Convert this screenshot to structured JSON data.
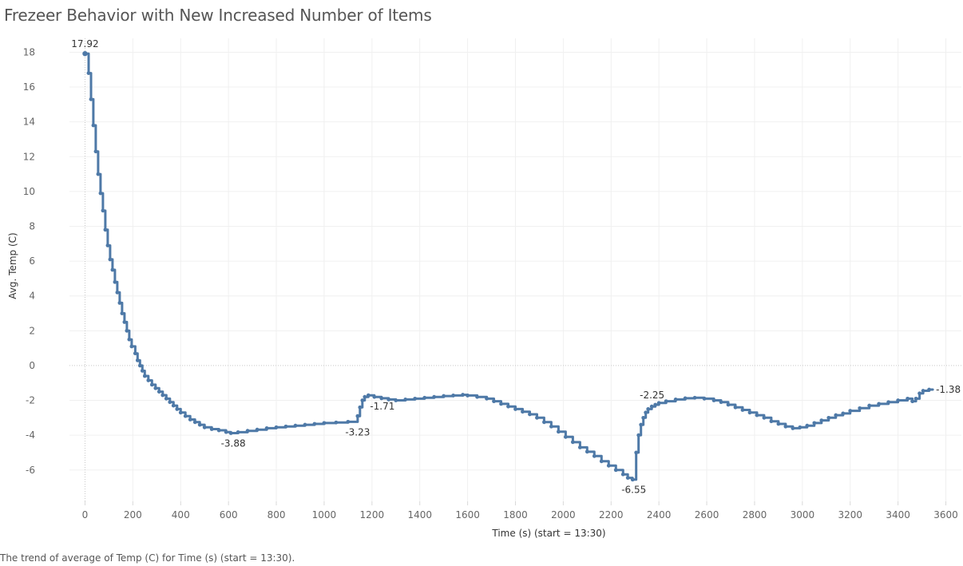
{
  "title": "Frezeer Behavior with New Increased Number of Items",
  "caption": "The trend of average of Temp (C) for Time (s) (start = 13:30).",
  "chart_data": {
    "type": "line",
    "line_style": "step",
    "title": "Frezeer Behavior with New Increased Number of Items",
    "xlabel": "Time (s) (start = 13:30)",
    "ylabel": "Avg. Temp (C)",
    "xlim": [
      -65,
      3665
    ],
    "ylim": [
      -7.8,
      18.8
    ],
    "x_ticks": [
      0,
      200,
      400,
      600,
      800,
      1000,
      1200,
      1400,
      1600,
      1800,
      2000,
      2200,
      2400,
      2600,
      2800,
      3000,
      3200,
      3400,
      3600
    ],
    "y_ticks": [
      -6,
      -4,
      -2,
      0,
      2,
      4,
      6,
      8,
      10,
      12,
      14,
      16,
      18
    ],
    "grid": true,
    "line_color": "#4e79a7",
    "series": [
      {
        "points": [
          [
            0,
            17.92
          ],
          [
            15,
            17.92
          ],
          [
            15,
            16.8
          ],
          [
            25,
            16.8
          ],
          [
            25,
            15.3
          ],
          [
            35,
            15.3
          ],
          [
            35,
            13.8
          ],
          [
            45,
            13.8
          ],
          [
            45,
            12.3
          ],
          [
            55,
            12.3
          ],
          [
            55,
            11.0
          ],
          [
            65,
            11.0
          ],
          [
            65,
            9.9
          ],
          [
            75,
            9.9
          ],
          [
            75,
            8.9
          ],
          [
            85,
            8.9
          ],
          [
            85,
            7.8
          ],
          [
            95,
            7.8
          ],
          [
            95,
            6.9
          ],
          [
            105,
            6.9
          ],
          [
            105,
            6.1
          ],
          [
            115,
            6.1
          ],
          [
            115,
            5.5
          ],
          [
            125,
            5.5
          ],
          [
            125,
            4.8
          ],
          [
            135,
            4.8
          ],
          [
            135,
            4.2
          ],
          [
            145,
            4.2
          ],
          [
            145,
            3.6
          ],
          [
            155,
            3.6
          ],
          [
            155,
            3.0
          ],
          [
            165,
            3.0
          ],
          [
            165,
            2.5
          ],
          [
            175,
            2.5
          ],
          [
            175,
            2.0
          ],
          [
            185,
            2.0
          ],
          [
            185,
            1.5
          ],
          [
            195,
            1.5
          ],
          [
            195,
            1.1
          ],
          [
            210,
            1.1
          ],
          [
            210,
            0.7
          ],
          [
            220,
            0.7
          ],
          [
            220,
            0.3
          ],
          [
            230,
            0.3
          ],
          [
            230,
            0.0
          ],
          [
            240,
            0.0
          ],
          [
            240,
            -0.3
          ],
          [
            250,
            -0.3
          ],
          [
            250,
            -0.6
          ],
          [
            265,
            -0.6
          ],
          [
            265,
            -0.85
          ],
          [
            280,
            -0.85
          ],
          [
            280,
            -1.1
          ],
          [
            295,
            -1.1
          ],
          [
            295,
            -1.3
          ],
          [
            310,
            -1.3
          ],
          [
            310,
            -1.5
          ],
          [
            325,
            -1.5
          ],
          [
            325,
            -1.7
          ],
          [
            340,
            -1.7
          ],
          [
            340,
            -1.9
          ],
          [
            355,
            -1.9
          ],
          [
            355,
            -2.1
          ],
          [
            370,
            -2.1
          ],
          [
            370,
            -2.3
          ],
          [
            385,
            -2.3
          ],
          [
            385,
            -2.5
          ],
          [
            400,
            -2.5
          ],
          [
            400,
            -2.7
          ],
          [
            420,
            -2.7
          ],
          [
            420,
            -2.9
          ],
          [
            440,
            -2.9
          ],
          [
            440,
            -3.1
          ],
          [
            460,
            -3.1
          ],
          [
            460,
            -3.25
          ],
          [
            480,
            -3.25
          ],
          [
            480,
            -3.4
          ],
          [
            500,
            -3.4
          ],
          [
            500,
            -3.55
          ],
          [
            530,
            -3.55
          ],
          [
            530,
            -3.65
          ],
          [
            560,
            -3.65
          ],
          [
            560,
            -3.72
          ],
          [
            590,
            -3.72
          ],
          [
            590,
            -3.82
          ],
          [
            610,
            -3.82
          ],
          [
            610,
            -3.88
          ],
          [
            640,
            -3.88
          ],
          [
            640,
            -3.83
          ],
          [
            680,
            -3.83
          ],
          [
            680,
            -3.75
          ],
          [
            720,
            -3.75
          ],
          [
            720,
            -3.68
          ],
          [
            760,
            -3.68
          ],
          [
            760,
            -3.6
          ],
          [
            800,
            -3.6
          ],
          [
            800,
            -3.55
          ],
          [
            840,
            -3.55
          ],
          [
            840,
            -3.5
          ],
          [
            880,
            -3.5
          ],
          [
            880,
            -3.45
          ],
          [
            920,
            -3.45
          ],
          [
            920,
            -3.4
          ],
          [
            960,
            -3.4
          ],
          [
            960,
            -3.35
          ],
          [
            1000,
            -3.35
          ],
          [
            1000,
            -3.3
          ],
          [
            1050,
            -3.3
          ],
          [
            1050,
            -3.27
          ],
          [
            1100,
            -3.27
          ],
          [
            1100,
            -3.23
          ],
          [
            1140,
            -3.23
          ],
          [
            1140,
            -2.9
          ],
          [
            1150,
            -2.9
          ],
          [
            1150,
            -2.4
          ],
          [
            1160,
            -2.4
          ],
          [
            1160,
            -2.0
          ],
          [
            1170,
            -2.0
          ],
          [
            1170,
            -1.8
          ],
          [
            1185,
            -1.8
          ],
          [
            1185,
            -1.71
          ],
          [
            1210,
            -1.71
          ],
          [
            1210,
            -1.8
          ],
          [
            1240,
            -1.8
          ],
          [
            1240,
            -1.88
          ],
          [
            1270,
            -1.88
          ],
          [
            1270,
            -1.95
          ],
          [
            1300,
            -1.95
          ],
          [
            1300,
            -2.0
          ],
          [
            1340,
            -2.0
          ],
          [
            1340,
            -1.95
          ],
          [
            1380,
            -1.95
          ],
          [
            1380,
            -1.9
          ],
          [
            1420,
            -1.9
          ],
          [
            1420,
            -1.85
          ],
          [
            1460,
            -1.85
          ],
          [
            1460,
            -1.8
          ],
          [
            1500,
            -1.8
          ],
          [
            1500,
            -1.75
          ],
          [
            1540,
            -1.75
          ],
          [
            1540,
            -1.72
          ],
          [
            1580,
            -1.72
          ],
          [
            1580,
            -1.68
          ],
          [
            1600,
            -1.68
          ],
          [
            1600,
            -1.72
          ],
          [
            1640,
            -1.72
          ],
          [
            1640,
            -1.8
          ],
          [
            1680,
            -1.8
          ],
          [
            1680,
            -1.9
          ],
          [
            1710,
            -1.9
          ],
          [
            1710,
            -2.05
          ],
          [
            1740,
            -2.05
          ],
          [
            1740,
            -2.2
          ],
          [
            1770,
            -2.2
          ],
          [
            1770,
            -2.35
          ],
          [
            1800,
            -2.35
          ],
          [
            1800,
            -2.5
          ],
          [
            1830,
            -2.5
          ],
          [
            1830,
            -2.65
          ],
          [
            1860,
            -2.65
          ],
          [
            1860,
            -2.8
          ],
          [
            1890,
            -2.8
          ],
          [
            1890,
            -3.0
          ],
          [
            1920,
            -3.0
          ],
          [
            1920,
            -3.25
          ],
          [
            1950,
            -3.25
          ],
          [
            1950,
            -3.5
          ],
          [
            1980,
            -3.5
          ],
          [
            1980,
            -3.8
          ],
          [
            2010,
            -3.8
          ],
          [
            2010,
            -4.1
          ],
          [
            2040,
            -4.1
          ],
          [
            2040,
            -4.4
          ],
          [
            2070,
            -4.4
          ],
          [
            2070,
            -4.7
          ],
          [
            2100,
            -4.7
          ],
          [
            2100,
            -4.95
          ],
          [
            2130,
            -4.95
          ],
          [
            2130,
            -5.2
          ],
          [
            2160,
            -5.2
          ],
          [
            2160,
            -5.5
          ],
          [
            2190,
            -5.5
          ],
          [
            2190,
            -5.75
          ],
          [
            2220,
            -5.75
          ],
          [
            2220,
            -6.0
          ],
          [
            2250,
            -6.0
          ],
          [
            2250,
            -6.25
          ],
          [
            2270,
            -6.25
          ],
          [
            2270,
            -6.45
          ],
          [
            2290,
            -6.45
          ],
          [
            2290,
            -6.55
          ],
          [
            2305,
            -6.55
          ],
          [
            2305,
            -5.0
          ],
          [
            2315,
            -5.0
          ],
          [
            2315,
            -4.0
          ],
          [
            2325,
            -4.0
          ],
          [
            2325,
            -3.4
          ],
          [
            2335,
            -3.4
          ],
          [
            2335,
            -3.0
          ],
          [
            2345,
            -3.0
          ],
          [
            2345,
            -2.7
          ],
          [
            2355,
            -2.7
          ],
          [
            2355,
            -2.5
          ],
          [
            2370,
            -2.5
          ],
          [
            2370,
            -2.35
          ],
          [
            2385,
            -2.35
          ],
          [
            2385,
            -2.25
          ],
          [
            2400,
            -2.25
          ],
          [
            2400,
            -2.15
          ],
          [
            2430,
            -2.15
          ],
          [
            2430,
            -2.05
          ],
          [
            2470,
            -2.05
          ],
          [
            2470,
            -1.95
          ],
          [
            2510,
            -1.95
          ],
          [
            2510,
            -1.88
          ],
          [
            2550,
            -1.88
          ],
          [
            2550,
            -1.85
          ],
          [
            2590,
            -1.85
          ],
          [
            2590,
            -1.9
          ],
          [
            2630,
            -1.9
          ],
          [
            2630,
            -2.0
          ],
          [
            2660,
            -2.0
          ],
          [
            2660,
            -2.1
          ],
          [
            2690,
            -2.1
          ],
          [
            2690,
            -2.25
          ],
          [
            2720,
            -2.25
          ],
          [
            2720,
            -2.4
          ],
          [
            2750,
            -2.4
          ],
          [
            2750,
            -2.55
          ],
          [
            2780,
            -2.55
          ],
          [
            2780,
            -2.7
          ],
          [
            2810,
            -2.7
          ],
          [
            2810,
            -2.85
          ],
          [
            2840,
            -2.85
          ],
          [
            2840,
            -3.0
          ],
          [
            2870,
            -3.0
          ],
          [
            2870,
            -3.2
          ],
          [
            2900,
            -3.2
          ],
          [
            2900,
            -3.35
          ],
          [
            2930,
            -3.35
          ],
          [
            2930,
            -3.5
          ],
          [
            2960,
            -3.5
          ],
          [
            2960,
            -3.6
          ],
          [
            2990,
            -3.6
          ],
          [
            2990,
            -3.55
          ],
          [
            3020,
            -3.55
          ],
          [
            3020,
            -3.45
          ],
          [
            3050,
            -3.45
          ],
          [
            3050,
            -3.3
          ],
          [
            3080,
            -3.3
          ],
          [
            3080,
            -3.15
          ],
          [
            3110,
            -3.15
          ],
          [
            3110,
            -3.0
          ],
          [
            3140,
            -3.0
          ],
          [
            3140,
            -2.85
          ],
          [
            3170,
            -2.85
          ],
          [
            3170,
            -2.75
          ],
          [
            3200,
            -2.75
          ],
          [
            3200,
            -2.6
          ],
          [
            3240,
            -2.6
          ],
          [
            3240,
            -2.45
          ],
          [
            3280,
            -2.45
          ],
          [
            3280,
            -2.3
          ],
          [
            3320,
            -2.3
          ],
          [
            3320,
            -2.2
          ],
          [
            3360,
            -2.2
          ],
          [
            3360,
            -2.1
          ],
          [
            3400,
            -2.1
          ],
          [
            3400,
            -2.0
          ],
          [
            3440,
            -2.0
          ],
          [
            3440,
            -1.9
          ],
          [
            3460,
            -1.9
          ],
          [
            3460,
            -2.05
          ],
          [
            3475,
            -2.05
          ],
          [
            3475,
            -1.9
          ],
          [
            3490,
            -1.9
          ],
          [
            3490,
            -1.6
          ],
          [
            3505,
            -1.6
          ],
          [
            3505,
            -1.45
          ],
          [
            3530,
            -1.45
          ],
          [
            3530,
            -1.38
          ],
          [
            3545,
            -1.38
          ]
        ]
      }
    ],
    "annotations": [
      {
        "text": "17.92",
        "x": 0,
        "y": 17.92,
        "anchor": "above"
      },
      {
        "text": "-3.88",
        "x": 620,
        "y": -3.88,
        "anchor": "below"
      },
      {
        "text": "-3.23",
        "x": 1140,
        "y": -3.23,
        "anchor": "below"
      },
      {
        "text": "-1.71",
        "x": 1185,
        "y": -1.71,
        "anchor": "below"
      },
      {
        "text": "-6.55",
        "x": 2295,
        "y": -6.55,
        "anchor": "below"
      },
      {
        "text": "-2.25",
        "x": 2385,
        "y": -2.25,
        "anchor": "above-left"
      },
      {
        "text": "-1.38",
        "x": 3545,
        "y": -1.38,
        "anchor": "right"
      }
    ]
  }
}
